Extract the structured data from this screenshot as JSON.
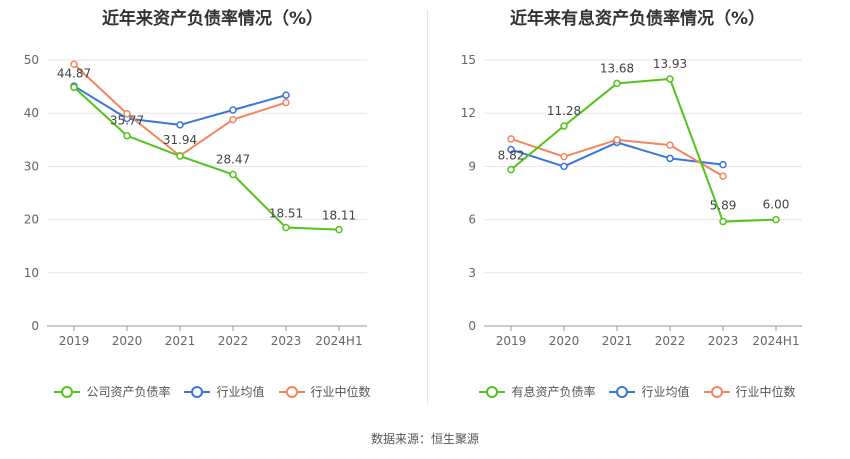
{
  "source": "数据来源：恒生聚源",
  "chart_data": [
    {
      "type": "line",
      "title": "近年来资产负债率情况（%）",
      "categories": [
        "2019",
        "2020",
        "2021",
        "2022",
        "2023",
        "2024H1"
      ],
      "ylim": [
        0,
        50
      ],
      "yticks": [
        "0",
        "10",
        "20",
        "30",
        "40",
        "50"
      ],
      "grid": true,
      "legend_position": "bottom",
      "series": [
        {
          "name": "公司资产负债率",
          "color": "#52c41a",
          "values": [
            44.87,
            35.77,
            31.94,
            28.47,
            18.51,
            18.11
          ],
          "labels": [
            "44.87",
            "35.77",
            "31.94",
            "28.47",
            "18.51",
            "18.11"
          ]
        },
        {
          "name": "行业均值",
          "color": "#3a75d9",
          "values": [
            45.1,
            39.0,
            37.8,
            40.6,
            43.4,
            null
          ]
        },
        {
          "name": "行业中位数",
          "color": "#f2875f",
          "values": [
            49.2,
            39.9,
            32.0,
            38.8,
            42.0,
            null
          ]
        }
      ]
    },
    {
      "type": "line",
      "title": "近年来有息资产负债率情况（%）",
      "categories": [
        "2019",
        "2020",
        "2021",
        "2022",
        "2023",
        "2024H1"
      ],
      "ylim": [
        0,
        15
      ],
      "yticks": [
        "0",
        "3",
        "6",
        "9",
        "12",
        "15"
      ],
      "grid": true,
      "legend_position": "bottom",
      "series": [
        {
          "name": "有息资产负债率",
          "color": "#52c41a",
          "values": [
            8.82,
            11.28,
            13.68,
            13.93,
            5.89,
            6.0
          ],
          "labels": [
            "8.82",
            "11.28",
            "13.68",
            "13.93",
            "5.89",
            "6.00"
          ]
        },
        {
          "name": "行业均值",
          "color": "#3a75d9",
          "values": [
            9.95,
            9.0,
            10.35,
            9.45,
            9.1,
            null
          ]
        },
        {
          "name": "行业中位数",
          "color": "#f2875f",
          "values": [
            10.55,
            9.55,
            10.5,
            10.2,
            8.45,
            null
          ]
        }
      ]
    }
  ]
}
